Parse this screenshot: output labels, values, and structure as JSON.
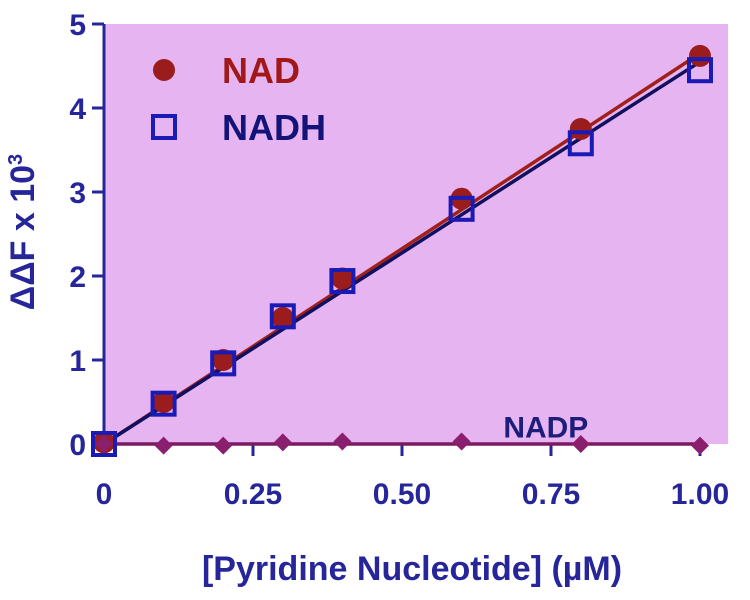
{
  "chart_data": {
    "type": "scatter",
    "title": "",
    "xlabel": "[Pyridine Nucleotide] (µM)",
    "ylabel": "ΔΔF x 10",
    "ylabel_sup": "3",
    "xlim": [
      0,
      1.0
    ],
    "ylim": [
      0,
      5
    ],
    "x_ticks": [
      0,
      0.25,
      0.5,
      0.75,
      1.0
    ],
    "x_tick_labels": [
      "0",
      "0.25",
      "0.50",
      "0.75",
      "1.00"
    ],
    "y_ticks": [
      0,
      1,
      2,
      3,
      4,
      5
    ],
    "y_tick_labels": [
      "0",
      "1",
      "2",
      "3",
      "4",
      "5"
    ],
    "grid": false,
    "legend_position": "top-left",
    "series": [
      {
        "name": "NAD",
        "marker": "filled-circle",
        "color": "#9b1c1c",
        "line_color": "#a0201c",
        "x": [
          0,
          0.1,
          0.2,
          0.3,
          0.4,
          0.6,
          0.8,
          1.0
        ],
        "y": [
          0.02,
          0.5,
          1.0,
          1.5,
          1.97,
          2.92,
          3.75,
          4.62
        ],
        "fit": [
          [
            0,
            0.0
          ],
          [
            1.0,
            4.65
          ]
        ]
      },
      {
        "name": "NADH",
        "marker": "open-square",
        "color": "#1a1ab4",
        "line_color": "#101060",
        "x": [
          0,
          0.1,
          0.2,
          0.3,
          0.4,
          0.6,
          0.8,
          1.0
        ],
        "y": [
          0.0,
          0.48,
          0.96,
          1.52,
          1.94,
          2.8,
          3.58,
          4.45
        ],
        "fit": [
          [
            0,
            0.0
          ],
          [
            1.0,
            4.55
          ]
        ]
      },
      {
        "name": "NADP",
        "marker": "filled-diamond",
        "color": "#8a1f6e",
        "line_color": "#7a1a62",
        "x": [
          0,
          0.1,
          0.2,
          0.3,
          0.4,
          0.6,
          0.8,
          1.0
        ],
        "y": [
          0.0,
          -0.02,
          -0.02,
          0.02,
          0.03,
          0.03,
          0.0,
          -0.02
        ],
        "fit": [
          [
            0,
            0.0
          ],
          [
            1.0,
            0.0
          ]
        ]
      }
    ],
    "annotations": [
      {
        "text": "NADP",
        "x": 0.67,
        "y": 0.22
      }
    ],
    "colors": {
      "plot_background": "#e6b4f0",
      "axis_text": "#26269a",
      "axis_line": "#26269a"
    }
  }
}
